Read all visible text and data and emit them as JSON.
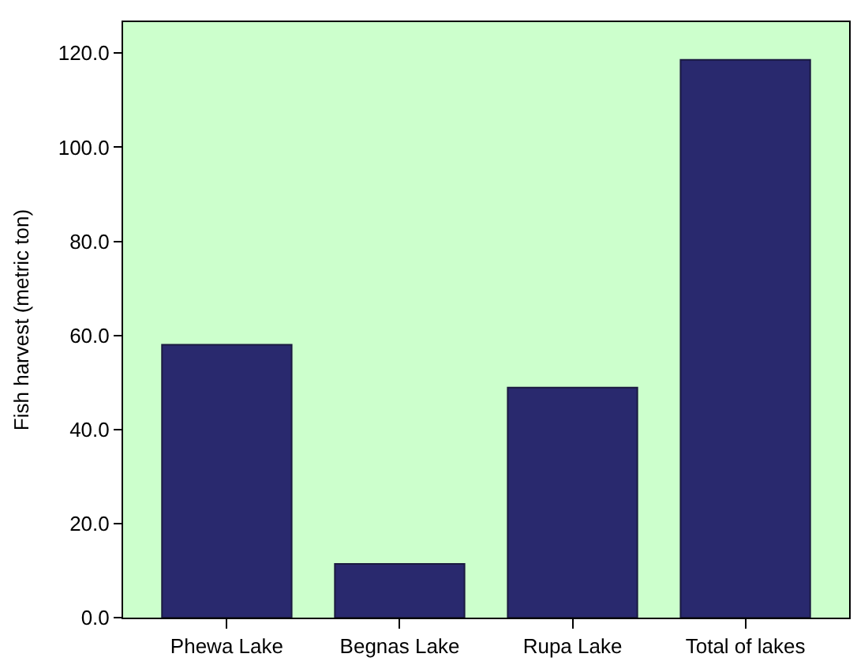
{
  "chart_data": {
    "type": "bar",
    "ylabel": "Fish harvest (metric ton)",
    "categories": [
      "Phewa Lake",
      "Begnas Lake",
      "Rupa Lake",
      "Total of lakes"
    ],
    "values": [
      58.0,
      11.4,
      48.9,
      118.6
    ],
    "color": "#29296e",
    "ylim": [
      0,
      126.6
    ],
    "yticks": [
      {
        "value": 0,
        "label": "0.0"
      },
      {
        "value": 20,
        "label": "20.0"
      },
      {
        "value": 40,
        "label": "40.0"
      },
      {
        "value": 60,
        "label": "60.0"
      },
      {
        "value": 80,
        "label": "80.0"
      },
      {
        "value": 100,
        "label": "100.0"
      },
      {
        "value": 120,
        "label": "120.0"
      }
    ],
    "grid": false,
    "legend": false
  }
}
